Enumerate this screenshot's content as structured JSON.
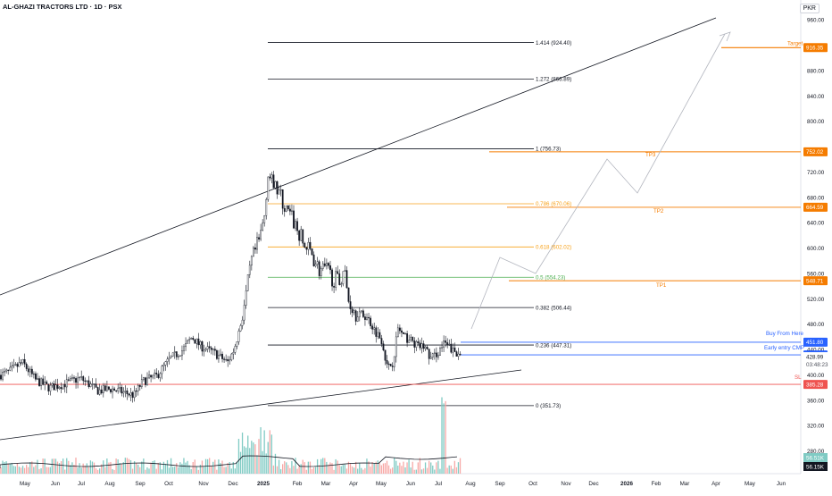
{
  "header": {
    "title": "AL-GHAZI TRACTORS LTD · 1D · PSX"
  },
  "currency": "PKR",
  "colors": {
    "up": "#26a69a",
    "down": "#ef5350",
    "candle": "#131722",
    "fib_gray": "#131722",
    "fib_orange": "#f7a21b",
    "fib_green": "#4caf50",
    "target": "#f57c00",
    "buy": "#2962ff",
    "sl": "#ef5350",
    "volume_up": "#80cbc4",
    "volume_down": "#f7a9a7"
  },
  "chart_data": {
    "type": "candlestick",
    "x_ticks": [
      "May",
      "Jun",
      "Jul",
      "Aug",
      "Sep",
      "Oct",
      "Nov",
      "Dec",
      "2025",
      "Feb",
      "Mar",
      "Apr",
      "May",
      "Jun",
      "Jul",
      "Aug",
      "Sep",
      "Oct",
      "Nov",
      "Dec",
      "2026",
      "Feb",
      "Mar",
      "Apr",
      "May",
      "Jun"
    ],
    "x_ticks_bold": [
      "2025",
      "2026"
    ],
    "y_ticks": [
      280,
      320,
      360,
      400,
      440,
      480,
      520,
      560,
      600,
      640,
      680,
      720,
      760,
      800,
      840,
      880,
      920,
      960
    ],
    "ylim": [
      270,
      975
    ],
    "fib_levels": [
      {
        "ratio": "1.414",
        "value": 924.4,
        "label": "1.414 (924.40)",
        "color": "gray"
      },
      {
        "ratio": "1.272",
        "value": 866.89,
        "label": "1.272 (866.89)",
        "color": "gray"
      },
      {
        "ratio": "1",
        "value": 756.73,
        "label": "1 (756.73)",
        "color": "gray"
      },
      {
        "ratio": "0.786",
        "value": 670.06,
        "label": "0.786 (670.06)",
        "color": "orange"
      },
      {
        "ratio": "0.618",
        "value": 602.02,
        "label": "0.618 (602.02)",
        "color": "orange"
      },
      {
        "ratio": "0.5",
        "value": 554.23,
        "label": "0.5 (554.23)",
        "color": "green"
      },
      {
        "ratio": "0.382",
        "value": 506.44,
        "label": "0.382 (506.44)",
        "color": "gray"
      },
      {
        "ratio": "0.236",
        "value": 447.31,
        "label": "0.236 (447.31)",
        "color": "gray"
      },
      {
        "ratio": "0",
        "value": 351.73,
        "label": "0 (351.73)",
        "color": "gray"
      }
    ],
    "price_lines": [
      {
        "name": "Target",
        "value": 916.35,
        "label": "916.35",
        "text": "Target",
        "color": "target"
      },
      {
        "name": "TP3",
        "value": 752.02,
        "label": "752.02",
        "text": "TP3",
        "color": "target"
      },
      {
        "name": "TP2",
        "value": 664.59,
        "label": "664.59",
        "text": "TP2",
        "color": "target"
      },
      {
        "name": "TP1",
        "value": 548.71,
        "label": "548.71",
        "text": "TP1",
        "color": "target"
      },
      {
        "name": "Buy From Here",
        "value": 451.8,
        "label": "451.80",
        "text": "Buy From Here",
        "color": "buy"
      },
      {
        "name": "Early entry CMP",
        "value": 431.79,
        "label": "431.79",
        "text": "Early entry CMP",
        "color": "buy"
      },
      {
        "name": "SL",
        "value": 385.28,
        "label": "385.28",
        "text": "SL",
        "color": "sl"
      }
    ],
    "current_price": {
      "value": 428.99,
      "label": "428.99",
      "countdown": "03:48:23"
    },
    "volume_labels": [
      "56.51K",
      "56.15K"
    ],
    "tick_labels_hidden_under_tags": [
      "760.00"
    ],
    "projection_path": [
      [
        "2025-07-28",
        450
      ],
      [
        "2025-08-23",
        590
      ],
      [
        "2025-09-24",
        555
      ],
      [
        "2025-11-10",
        755
      ],
      [
        "2025-12-10",
        690
      ],
      [
        "2026-03-20",
        955
      ]
    ]
  }
}
